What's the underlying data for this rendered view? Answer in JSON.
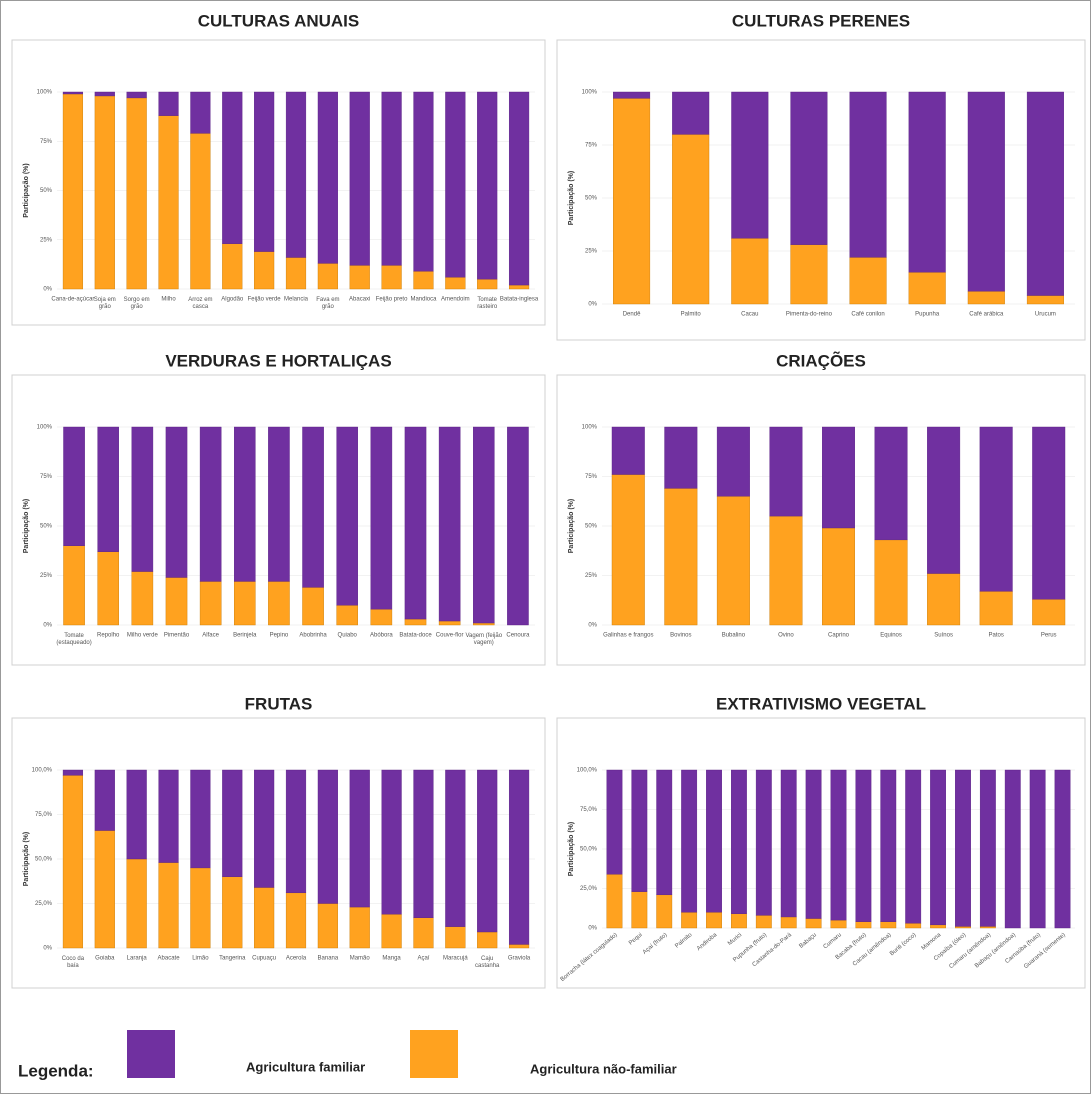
{
  "chart_data": [
    {
      "type": "bar",
      "stacked": true,
      "title": "CULTURAS ANUAIS",
      "y_label": "Participação (%)",
      "categories": [
        "Cana-de-açúcar",
        "Soja em grão",
        "Sorgo em grão",
        "Milho",
        "Arroz em casca",
        "Algodão",
        "Feijão verde",
        "Melancia",
        "Fava em grão",
        "Abacaxi",
        "Feijão preto",
        "Mandioca",
        "Amendoim",
        "Tomate rasteiro",
        "Batata-inglesa"
      ],
      "series": [
        {
          "color": "#ffa21f",
          "values": [
            99,
            98,
            97,
            88,
            79,
            23,
            19,
            16,
            13,
            12,
            12,
            9,
            6,
            5,
            2
          ]
        },
        {
          "color": "#7030a0",
          "values": [
            1,
            2,
            3,
            12,
            21,
            77,
            81,
            84,
            87,
            88,
            88,
            91,
            94,
            95,
            98
          ]
        }
      ],
      "ylim": [
        0,
        100
      ],
      "yticks": [
        {
          "value": 0,
          "label": "0%"
        },
        {
          "value": 25,
          "label": "25%"
        },
        {
          "value": 50,
          "label": "50%"
        },
        {
          "value": 75,
          "label": "75%"
        },
        {
          "value": 100,
          "label": "100%"
        }
      ]
    },
    {
      "type": "bar",
      "stacked": true,
      "title": "CULTURAS PERENES",
      "y_label": "Participação (%)",
      "categories": [
        "Dendê",
        "Palmito",
        "Cacau",
        "Pimenta-do-reino",
        "Café conilon",
        "Pupunha",
        "Café arábica",
        "Urucum"
      ],
      "series": [
        {
          "color": "#ffa21f",
          "values": [
            97,
            80,
            31,
            28,
            22,
            15,
            6,
            4
          ]
        },
        {
          "color": "#7030a0",
          "values": [
            3,
            20,
            69,
            72,
            78,
            85,
            94,
            96
          ]
        }
      ],
      "ylim": [
        0,
        100
      ],
      "yticks": [
        {
          "value": 0,
          "label": "0%"
        },
        {
          "value": 25,
          "label": "25%"
        },
        {
          "value": 50,
          "label": "50%"
        },
        {
          "value": 75,
          "label": "75%"
        },
        {
          "value": 100,
          "label": "100%"
        }
      ]
    },
    {
      "type": "bar",
      "stacked": true,
      "title": "VERDURAS E HORTALIÇAS",
      "y_label": "Participação (%)",
      "categories": [
        "Tomate (estaqueado)",
        "Repolho",
        "Milho verde",
        "Pimentão",
        "Alface",
        "Berinjela",
        "Pepino",
        "Abobrinha",
        "Quiabo",
        "Abóbora",
        "Batata-doce",
        "Couve-flor",
        "Vagem (feijão vagem)",
        "Cenoura"
      ],
      "series": [
        {
          "color": "#ffa21f",
          "values": [
            40,
            37,
            27,
            24,
            22,
            22,
            22,
            19,
            10,
            8,
            3,
            2,
            1,
            0
          ]
        },
        {
          "color": "#7030a0",
          "values": [
            60,
            63,
            73,
            76,
            78,
            78,
            78,
            81,
            90,
            92,
            97,
            98,
            99,
            100
          ]
        }
      ],
      "ylim": [
        0,
        100
      ],
      "yticks": [
        {
          "value": 0,
          "label": "0%"
        },
        {
          "value": 25,
          "label": "25%"
        },
        {
          "value": 50,
          "label": "50%"
        },
        {
          "value": 75,
          "label": "75%"
        },
        {
          "value": 100,
          "label": "100%"
        }
      ]
    },
    {
      "type": "bar",
      "stacked": true,
      "title": "CRIAÇÕES",
      "y_label": "Participação (%)",
      "categories": [
        "Galinhas e frangos",
        "Bovinos",
        "Bubalino",
        "Ovino",
        "Caprino",
        "Equinos",
        "Suínos",
        "Patos",
        "Perus"
      ],
      "series": [
        {
          "color": "#ffa21f",
          "values": [
            76,
            69,
            65,
            55,
            49,
            43,
            26,
            17,
            13
          ]
        },
        {
          "color": "#7030a0",
          "values": [
            24,
            31,
            35,
            45,
            51,
            57,
            74,
            83,
            87
          ]
        }
      ],
      "ylim": [
        0,
        100
      ],
      "yticks": [
        {
          "value": 0,
          "label": "0%"
        },
        {
          "value": 25,
          "label": "25%"
        },
        {
          "value": 50,
          "label": "50%"
        },
        {
          "value": 75,
          "label": "75%"
        },
        {
          "value": 100,
          "label": "100%"
        }
      ]
    },
    {
      "type": "bar",
      "stacked": true,
      "title": "FRUTAS",
      "y_label": "Participação (%)",
      "categories": [
        "Coco da baía",
        "Goiaba",
        "Laranja",
        "Abacate",
        "Limão",
        "Tangerina",
        "Cupuaçu",
        "Acerola",
        "Banana",
        "Mamão",
        "Manga",
        "Açaí",
        "Maracujá",
        "Caju castanha",
        "Graviola"
      ],
      "series": [
        {
          "color": "#ffa21f",
          "values": [
            97,
            66,
            50,
            48,
            45,
            40,
            34,
            31,
            25,
            23,
            19,
            17,
            12,
            9,
            2
          ]
        },
        {
          "color": "#7030a0",
          "values": [
            3,
            34,
            50,
            52,
            55,
            60,
            66,
            69,
            75,
            77,
            81,
            83,
            88,
            91,
            98
          ]
        }
      ],
      "ylim": [
        0,
        100
      ],
      "yticks": [
        {
          "value": 0,
          "label": "0%"
        },
        {
          "value": 25,
          "label": "25,0%"
        },
        {
          "value": 50,
          "label": "50,0%"
        },
        {
          "value": 75,
          "label": "75,0%"
        },
        {
          "value": 100,
          "label": "100,0%"
        }
      ]
    },
    {
      "type": "bar",
      "stacked": true,
      "title": "EXTRATIVISMO VEGETAL",
      "y_label": "Participação (%)",
      "categories": [
        "Borracha (látex coagulado)",
        "Pequi",
        "Açaí (fruto)",
        "Palmito",
        "Andiroba",
        "Murici",
        "Pupunha (fruto)",
        "Castanha-do-Pará",
        "Babaçu",
        "Cumaru",
        "Bacaba (fruto)",
        "Cacau (amêndoa)",
        "Buriti (coco)",
        "Mamona",
        "Copaíba (óleo)",
        "Cumaru (amêndoa)",
        "Babaçu (amêndoa)",
        "Carnaúba (fruto)",
        "Guaraná (semente)"
      ],
      "series": [
        {
          "color": "#ffa21f",
          "values": [
            34,
            23,
            21,
            10,
            10,
            9,
            8,
            7,
            6,
            5,
            4,
            4,
            3,
            2,
            1,
            1,
            0,
            0,
            0
          ]
        },
        {
          "color": "#7030a0",
          "values": [
            66,
            77,
            79,
            90,
            90,
            91,
            92,
            93,
            94,
            95,
            96,
            96,
            97,
            98,
            99,
            99,
            100,
            100,
            100
          ]
        }
      ],
      "ylim": [
        0,
        100
      ],
      "yticks": [
        {
          "value": 0,
          "label": "0%"
        },
        {
          "value": 25,
          "label": "25,0%"
        },
        {
          "value": 50,
          "label": "50,0%"
        },
        {
          "value": 75,
          "label": "75,0%"
        },
        {
          "value": 100,
          "label": "100,0%"
        }
      ]
    }
  ],
  "legend": {
    "title": "Legenda:",
    "entries": [
      "Agricultura familiar",
      "Agricultura não-familiar"
    ]
  }
}
